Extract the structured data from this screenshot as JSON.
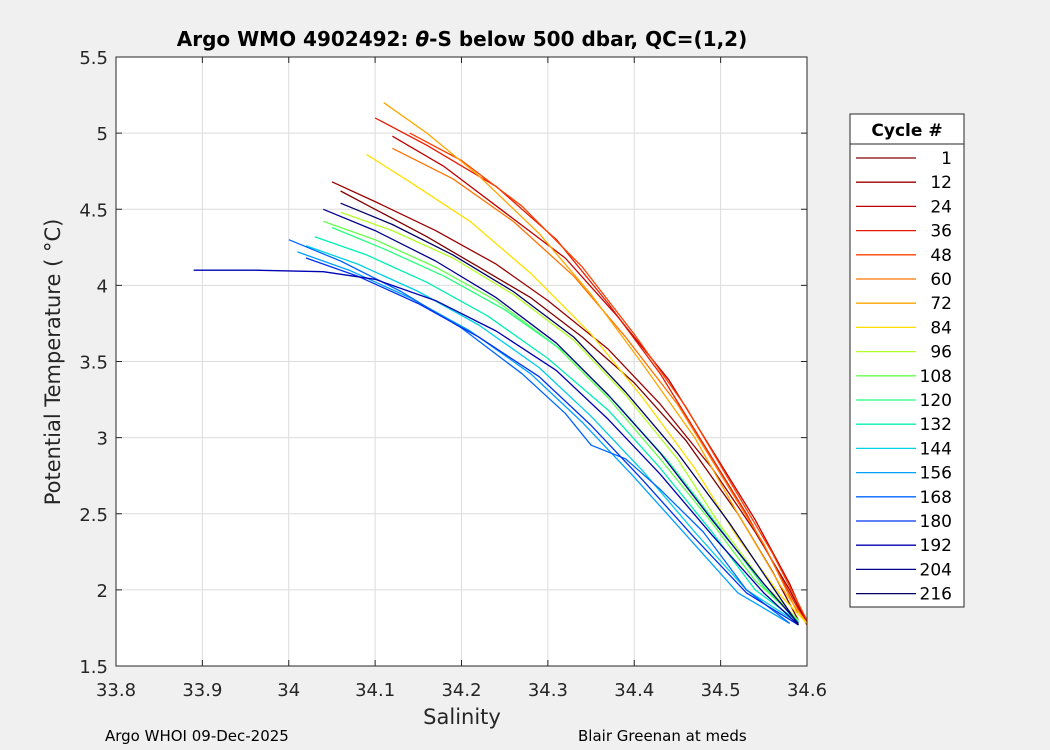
{
  "chart_data": {
    "type": "line",
    "title_prefix": "Argo WMO 4902492: ",
    "title_symbol": "θ",
    "title_suffix": "-S below 500 dbar,  QC=(1,2)",
    "xlabel": "Salinity",
    "ylabel": "Potential Temperature ( °C)",
    "xlim": [
      33.8,
      34.6
    ],
    "ylim": [
      1.5,
      5.5
    ],
    "xticks": [
      33.8,
      33.9,
      34.0,
      34.1,
      34.2,
      34.3,
      34.4,
      34.5,
      34.6
    ],
    "xtick_labels": [
      "33.8",
      "33.9",
      "34",
      "34.1",
      "34.2",
      "34.3",
      "34.4",
      "34.5",
      "34.6"
    ],
    "yticks": [
      1.5,
      2,
      2.5,
      3,
      3.5,
      4,
      4.5,
      5,
      5.5
    ],
    "ytick_labels": [
      "1.5",
      "2",
      "2.5",
      "3",
      "3.5",
      "4",
      "4.5",
      "5",
      "5.5"
    ],
    "grid": true,
    "legend": {
      "title": "Cycle #",
      "placement": "outside-right",
      "entries": [
        {
          "label": "1",
          "color": "#800000"
        },
        {
          "label": "12",
          "color": "#9c0000"
        },
        {
          "label": "24",
          "color": "#bf0000"
        },
        {
          "label": "36",
          "color": "#e61a00"
        },
        {
          "label": "48",
          "color": "#ff4000"
        },
        {
          "label": "60",
          "color": "#ff7300"
        },
        {
          "label": "72",
          "color": "#ffa600"
        },
        {
          "label": "84",
          "color": "#ffe000"
        },
        {
          "label": "96",
          "color": "#b3ff26"
        },
        {
          "label": "108",
          "color": "#66ff4d"
        },
        {
          "label": "120",
          "color": "#26ff80"
        },
        {
          "label": "132",
          "color": "#00f0b3"
        },
        {
          "label": "144",
          "color": "#00cfe6"
        },
        {
          "label": "156",
          "color": "#00a0ff"
        },
        {
          "label": "168",
          "color": "#0066ff"
        },
        {
          "label": "180",
          "color": "#0030f0"
        },
        {
          "label": "192",
          "color": "#0000b3"
        },
        {
          "label": "204",
          "color": "#00008c"
        },
        {
          "label": "216",
          "color": "#000066"
        }
      ]
    },
    "series": [
      {
        "cycle": "1",
        "color": "#800000",
        "points": [
          [
            34.06,
            4.62
          ],
          [
            34.1,
            4.5
          ],
          [
            34.16,
            4.32
          ],
          [
            34.22,
            4.12
          ],
          [
            34.28,
            3.92
          ],
          [
            34.34,
            3.66
          ],
          [
            34.4,
            3.36
          ],
          [
            34.46,
            2.98
          ],
          [
            34.52,
            2.5
          ],
          [
            34.56,
            2.12
          ],
          [
            34.59,
            1.8
          ]
        ]
      },
      {
        "cycle": "12",
        "color": "#9c0000",
        "points": [
          [
            34.05,
            4.68
          ],
          [
            34.1,
            4.55
          ],
          [
            34.17,
            4.36
          ],
          [
            34.24,
            4.14
          ],
          [
            34.3,
            3.9
          ],
          [
            34.37,
            3.58
          ],
          [
            34.43,
            3.22
          ],
          [
            34.49,
            2.8
          ],
          [
            34.54,
            2.38
          ],
          [
            34.58,
            2.0
          ],
          [
            34.6,
            1.78
          ]
        ]
      },
      {
        "cycle": "24",
        "color": "#bf0000",
        "points": [
          [
            34.12,
            4.98
          ],
          [
            34.18,
            4.78
          ],
          [
            34.25,
            4.48
          ],
          [
            34.32,
            4.18
          ],
          [
            34.38,
            3.8
          ],
          [
            34.44,
            3.38
          ],
          [
            34.49,
            2.92
          ],
          [
            34.54,
            2.46
          ],
          [
            34.58,
            2.04
          ],
          [
            34.6,
            1.78
          ]
        ]
      },
      {
        "cycle": "36",
        "color": "#e61a00",
        "points": [
          [
            34.1,
            5.1
          ],
          [
            34.16,
            4.92
          ],
          [
            34.24,
            4.65
          ],
          [
            34.31,
            4.3
          ],
          [
            34.37,
            3.88
          ],
          [
            34.43,
            3.42
          ],
          [
            34.48,
            2.96
          ],
          [
            34.53,
            2.5
          ],
          [
            34.57,
            2.08
          ],
          [
            34.6,
            1.77
          ]
        ]
      },
      {
        "cycle": "48",
        "color": "#ff4000",
        "points": [
          [
            34.14,
            5.0
          ],
          [
            34.2,
            4.82
          ],
          [
            34.27,
            4.52
          ],
          [
            34.34,
            4.12
          ],
          [
            34.4,
            3.68
          ],
          [
            34.46,
            3.2
          ],
          [
            34.51,
            2.72
          ],
          [
            34.56,
            2.24
          ],
          [
            34.6,
            1.8
          ]
        ]
      },
      {
        "cycle": "60",
        "color": "#ff7300",
        "points": [
          [
            34.12,
            4.9
          ],
          [
            34.19,
            4.7
          ],
          [
            34.26,
            4.42
          ],
          [
            34.33,
            4.06
          ],
          [
            34.39,
            3.66
          ],
          [
            34.45,
            3.22
          ],
          [
            34.5,
            2.76
          ],
          [
            34.55,
            2.3
          ],
          [
            34.59,
            1.84
          ]
        ]
      },
      {
        "cycle": "72",
        "color": "#ffa600",
        "points": [
          [
            34.11,
            5.2
          ],
          [
            34.16,
            5.0
          ],
          [
            34.22,
            4.72
          ],
          [
            34.29,
            4.34
          ],
          [
            34.35,
            3.94
          ],
          [
            34.41,
            3.48
          ],
          [
            34.47,
            3.0
          ],
          [
            34.52,
            2.5
          ],
          [
            34.57,
            2.02
          ],
          [
            34.6,
            1.78
          ]
        ]
      },
      {
        "cycle": "84",
        "color": "#ffe000",
        "points": [
          [
            34.09,
            4.86
          ],
          [
            34.14,
            4.68
          ],
          [
            34.21,
            4.42
          ],
          [
            34.28,
            4.08
          ],
          [
            34.35,
            3.68
          ],
          [
            34.41,
            3.26
          ],
          [
            34.47,
            2.8
          ],
          [
            34.52,
            2.34
          ],
          [
            34.57,
            1.96
          ],
          [
            34.6,
            1.78
          ]
        ]
      },
      {
        "cycle": "96",
        "color": "#b3ff26",
        "points": [
          [
            34.06,
            4.48
          ],
          [
            34.12,
            4.36
          ],
          [
            34.19,
            4.18
          ],
          [
            34.26,
            3.94
          ],
          [
            34.33,
            3.64
          ],
          [
            34.39,
            3.28
          ],
          [
            34.45,
            2.86
          ],
          [
            34.5,
            2.42
          ],
          [
            34.55,
            2.04
          ],
          [
            34.59,
            1.8
          ]
        ]
      },
      {
        "cycle": "108",
        "color": "#66ff4d",
        "points": [
          [
            34.04,
            4.42
          ],
          [
            34.1,
            4.3
          ],
          [
            34.17,
            4.12
          ],
          [
            34.24,
            3.9
          ],
          [
            34.31,
            3.6
          ],
          [
            34.37,
            3.26
          ],
          [
            34.43,
            2.86
          ],
          [
            34.49,
            2.44
          ],
          [
            34.54,
            2.06
          ],
          [
            34.59,
            1.8
          ]
        ]
      },
      {
        "cycle": "120",
        "color": "#26ff80",
        "points": [
          [
            34.05,
            4.38
          ],
          [
            34.11,
            4.24
          ],
          [
            34.18,
            4.06
          ],
          [
            34.25,
            3.84
          ],
          [
            34.32,
            3.56
          ],
          [
            34.38,
            3.22
          ],
          [
            34.44,
            2.84
          ],
          [
            34.5,
            2.4
          ],
          [
            34.55,
            2.02
          ],
          [
            34.59,
            1.79
          ]
        ]
      },
      {
        "cycle": "132",
        "color": "#00f0b3",
        "points": [
          [
            34.03,
            4.32
          ],
          [
            34.09,
            4.2
          ],
          [
            34.16,
            4.02
          ],
          [
            34.23,
            3.8
          ],
          [
            34.3,
            3.52
          ],
          [
            34.37,
            3.18
          ],
          [
            34.43,
            2.8
          ],
          [
            34.49,
            2.38
          ],
          [
            34.54,
            2.0
          ],
          [
            34.59,
            1.79
          ]
        ]
      },
      {
        "cycle": "144",
        "color": "#00cfe6",
        "points": [
          [
            34.02,
            4.26
          ],
          [
            34.08,
            4.14
          ],
          [
            34.15,
            3.96
          ],
          [
            34.22,
            3.74
          ],
          [
            34.29,
            3.46
          ],
          [
            34.35,
            3.14
          ],
          [
            34.41,
            2.78
          ],
          [
            34.47,
            2.38
          ],
          [
            34.53,
            2.0
          ],
          [
            34.59,
            1.78
          ]
        ]
      },
      {
        "cycle": "156",
        "color": "#00a0ff",
        "points": [
          [
            34.01,
            4.22
          ],
          [
            34.07,
            4.1
          ],
          [
            34.14,
            3.92
          ],
          [
            34.21,
            3.7
          ],
          [
            34.28,
            3.42
          ],
          [
            34.34,
            3.1
          ],
          [
            34.4,
            2.74
          ],
          [
            34.46,
            2.36
          ],
          [
            34.52,
            1.98
          ],
          [
            34.58,
            1.78
          ]
        ]
      },
      {
        "cycle": "168",
        "color": "#0066ff",
        "points": [
          [
            34.0,
            4.3
          ],
          [
            34.06,
            4.16
          ],
          [
            34.13,
            3.96
          ],
          [
            34.2,
            3.72
          ],
          [
            34.27,
            3.42
          ],
          [
            34.32,
            3.16
          ],
          [
            34.35,
            2.95
          ],
          [
            34.39,
            2.86
          ],
          [
            34.43,
            2.66
          ],
          [
            34.48,
            2.38
          ],
          [
            34.53,
            2.0
          ],
          [
            34.58,
            1.78
          ]
        ]
      },
      {
        "cycle": "180",
        "color": "#0030f0",
        "points": [
          [
            34.02,
            4.18
          ],
          [
            34.08,
            4.06
          ],
          [
            34.15,
            3.88
          ],
          [
            34.22,
            3.66
          ],
          [
            34.29,
            3.4
          ],
          [
            34.35,
            3.08
          ],
          [
            34.41,
            2.72
          ],
          [
            34.47,
            2.34
          ],
          [
            34.53,
            1.98
          ],
          [
            34.59,
            1.77
          ]
        ]
      },
      {
        "cycle": "192",
        "color": "#0000b3",
        "points": [
          [
            33.89,
            4.1
          ],
          [
            33.96,
            4.1
          ],
          [
            34.04,
            4.09
          ],
          [
            34.1,
            4.04
          ],
          [
            34.17,
            3.9
          ],
          [
            34.24,
            3.7
          ],
          [
            34.31,
            3.44
          ],
          [
            34.37,
            3.12
          ],
          [
            34.43,
            2.76
          ],
          [
            34.49,
            2.36
          ],
          [
            34.55,
            1.98
          ],
          [
            34.59,
            1.77
          ]
        ]
      },
      {
        "cycle": "204",
        "color": "#00008c",
        "points": [
          [
            34.04,
            4.5
          ],
          [
            34.1,
            4.36
          ],
          [
            34.17,
            4.16
          ],
          [
            34.24,
            3.92
          ],
          [
            34.31,
            3.62
          ],
          [
            34.37,
            3.28
          ],
          [
            34.43,
            2.9
          ],
          [
            34.49,
            2.46
          ],
          [
            34.55,
            2.04
          ],
          [
            34.59,
            1.78
          ]
        ]
      },
      {
        "cycle": "216",
        "color": "#000066",
        "points": [
          [
            34.06,
            4.54
          ],
          [
            34.12,
            4.4
          ],
          [
            34.19,
            4.2
          ],
          [
            34.26,
            3.96
          ],
          [
            34.33,
            3.66
          ],
          [
            34.39,
            3.3
          ],
          [
            34.45,
            2.9
          ],
          [
            34.51,
            2.44
          ],
          [
            34.56,
            2.02
          ],
          [
            34.59,
            1.77
          ]
        ]
      }
    ]
  },
  "footer": {
    "left": "Argo WHOI 09-Dec-2025",
    "right": "Blair Greenan at meds"
  }
}
